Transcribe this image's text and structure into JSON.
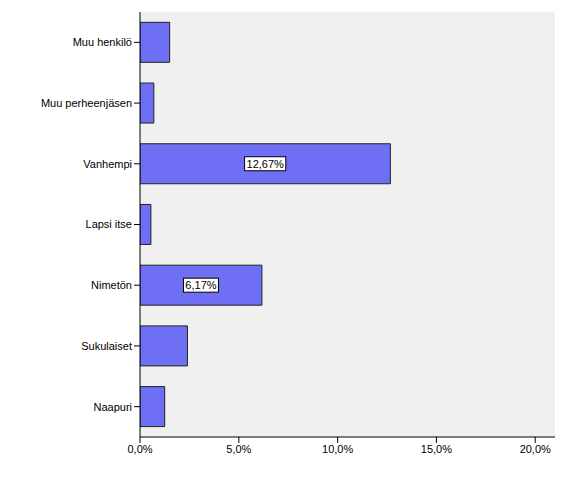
{
  "chart_data": {
    "type": "bar",
    "orientation": "horizontal",
    "categories": [
      "Muu henkilö",
      "Muu perheenjäsen",
      "Vanhempi",
      "Lapsi itse",
      "Nimetön",
      "Sukulaiset",
      "Naapuri"
    ],
    "values": [
      1.5,
      0.7,
      12.67,
      0.55,
      6.17,
      2.4,
      1.25
    ],
    "data_labels": true,
    "value_labels": [
      null,
      null,
      "12,67%",
      null,
      "6,17%",
      null,
      null
    ],
    "color": "#6f6ff6",
    "xlim": [
      0,
      21
    ],
    "xticks": [
      {
        "value": 0,
        "label": "0,0%"
      },
      {
        "value": 5,
        "label": "5,0%"
      },
      {
        "value": 10,
        "label": "10,0%"
      },
      {
        "value": 15,
        "label": "15,0%"
      },
      {
        "value": 20,
        "label": "20,0%"
      }
    ],
    "grid": false
  }
}
